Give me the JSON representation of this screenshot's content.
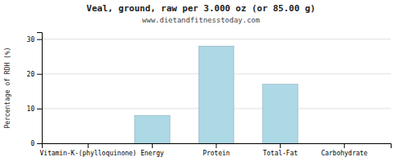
{
  "chart_data": {
    "type": "bar",
    "title": "Veal, ground, raw per 3.000 oz (or 85.00 g)",
    "subtitle": "www.dietandfitnesstoday.com",
    "categories": [
      "Vitamin-K-(phylloquinone)",
      "Energy",
      "Protein",
      "Total-Fat",
      "Carbohydrate"
    ],
    "values": [
      0,
      8,
      28,
      17,
      0
    ],
    "color": "#add8e6",
    "ylabel": "Percentage of RDH (%)",
    "ylim": [
      0,
      32
    ],
    "yticks": [
      0,
      10,
      20,
      30
    ],
    "grid": true
  }
}
